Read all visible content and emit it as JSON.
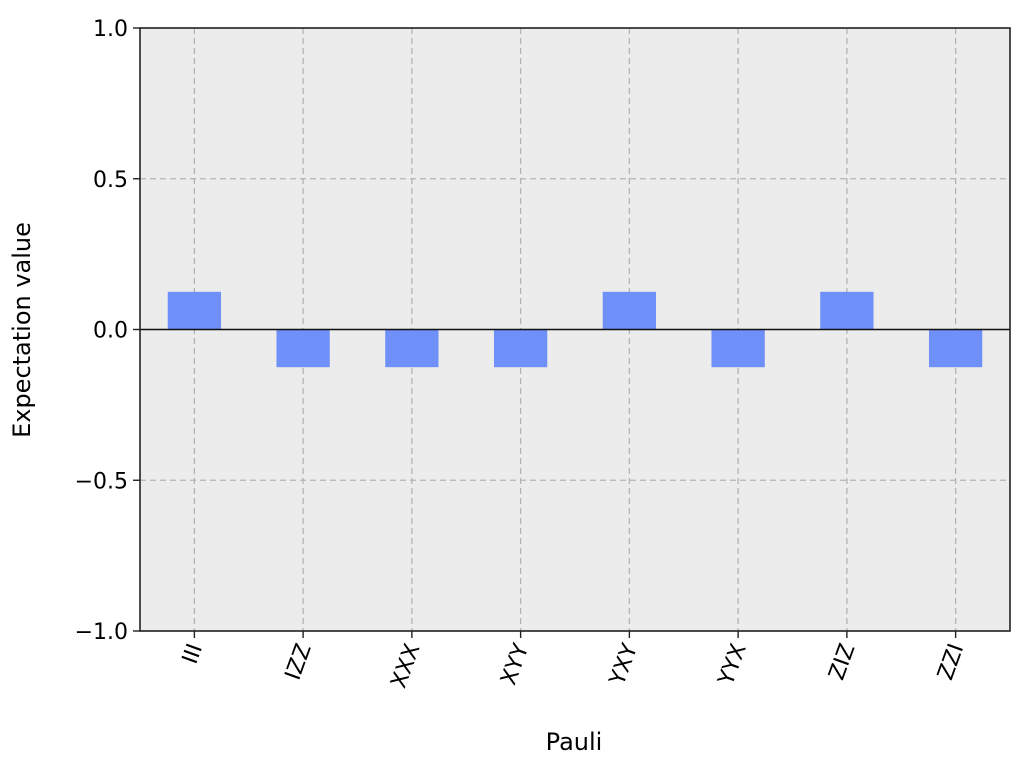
{
  "chart_data": {
    "type": "bar",
    "title": "",
    "xlabel": "Pauli",
    "ylabel": "Expectation value",
    "categories": [
      "III",
      "IZZ",
      "XXX",
      "XYY",
      "YXY",
      "YYX",
      "ZIZ",
      "ZZI"
    ],
    "values": [
      0.125,
      -0.125,
      -0.125,
      -0.125,
      0.125,
      -0.125,
      0.125,
      -0.125
    ],
    "ylim": [
      -1.0,
      1.0
    ],
    "yticks": [
      -1.0,
      -0.5,
      0.0,
      0.5,
      1.0
    ],
    "ytick_labels": [
      "−1.0",
      "−0.5",
      "0.0",
      "0.5",
      "1.0"
    ],
    "grid": true,
    "grid_style": "dashed",
    "bar_color": "#6f8ff9",
    "plot_background": "#ececec",
    "zero_line": true
  }
}
